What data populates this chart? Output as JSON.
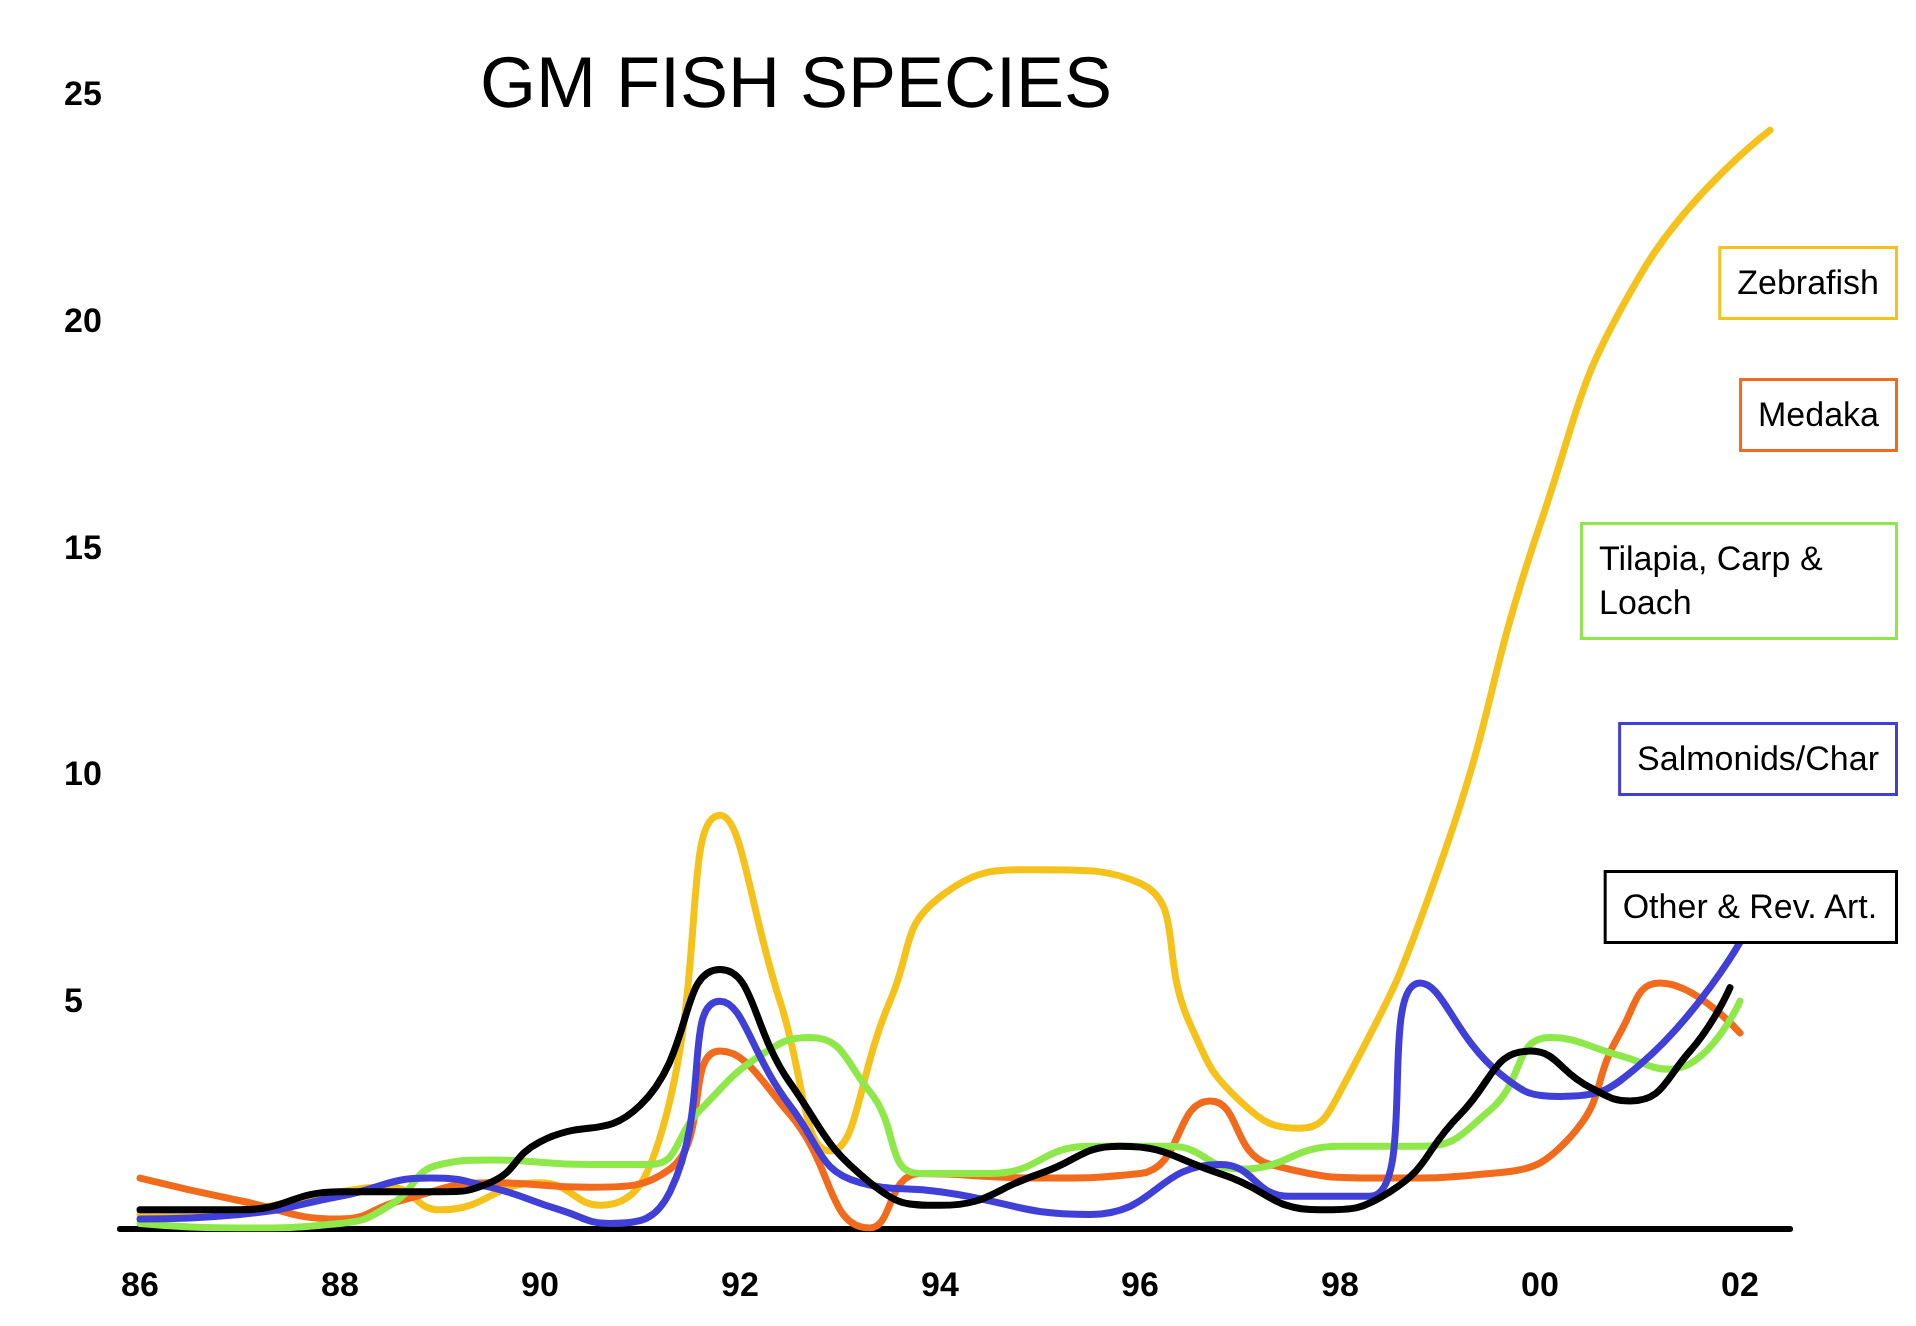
{
  "chart_data": {
    "type": "line",
    "title": "GM FISH SPECIES",
    "xlim": [
      1985.8,
      2002.5
    ],
    "ylim": [
      0,
      25
    ],
    "xticks": [
      {
        "value": 1986,
        "label": "86"
      },
      {
        "value": 1988,
        "label": "88"
      },
      {
        "value": 1990,
        "label": "90"
      },
      {
        "value": 1992,
        "label": "92"
      },
      {
        "value": 1994,
        "label": "94"
      },
      {
        "value": 1996,
        "label": "96"
      },
      {
        "value": 1998,
        "label": "98"
      },
      {
        "value": 2000,
        "label": "00"
      },
      {
        "value": 2002,
        "label": "02"
      }
    ],
    "yticks": [
      5,
      10,
      15,
      20,
      25
    ],
    "grid": false,
    "legend": "right",
    "marker": "none",
    "line_style": "solid",
    "series": [
      {
        "name": "Zebrafish",
        "color": "#f5c21b",
        "x": [
          1986,
          1987,
          1988,
          1988.5,
          1989,
          1990,
          1990.6,
          1991.2,
          1991.8,
          1992.4,
          1992.9,
          1993.5,
          1994,
          1995,
          1996,
          1996.5,
          1997,
          1997.6,
          1998,
          1999,
          2000,
          2001,
          2002.3
        ],
        "values": [
          0.3,
          0.4,
          0.8,
          0.9,
          0.4,
          1.0,
          0.5,
          2.0,
          9.1,
          5.0,
          1.7,
          5.0,
          7.3,
          7.9,
          7.6,
          4.5,
          2.8,
          2.2,
          3.0,
          8.0,
          15.5,
          21.0,
          24.2
        ]
      },
      {
        "name": "Medaka",
        "color": "#f26a1b",
        "x": [
          1986,
          1987,
          1988,
          1988.6,
          1989.5,
          1990.5,
          1991.3,
          1991.8,
          1992.5,
          1993.3,
          1993.8,
          1995,
          1996,
          1996.7,
          1997.3,
          1998.5,
          1999.5,
          2000.3,
          2000.8,
          2001.2,
          2002
        ],
        "values": [
          1.1,
          0.6,
          0.2,
          0.6,
          1.0,
          0.9,
          1.3,
          3.9,
          2.5,
          0,
          1.2,
          1.1,
          1.2,
          2.8,
          1.4,
          1.1,
          1.2,
          2.0,
          4.3,
          5.4,
          4.3
        ]
      },
      {
        "name": "Tilapia, Carp & Loach",
        "color": "#8ee84a",
        "x": [
          1986,
          1987,
          1988,
          1988.5,
          1989,
          1989.5,
          1990.5,
          1991.1,
          1991.6,
          1992.2,
          1992.7,
          1993.3,
          1993.8,
          1994.5,
          1995.5,
          1996.3,
          1997,
          1998,
          1998.8,
          1999.5,
          2000.1,
          2000.8,
          2001.3,
          2002
        ],
        "values": [
          0.1,
          0,
          0.1,
          0.5,
          1.4,
          1.5,
          1.4,
          1.4,
          2.6,
          3.8,
          4.2,
          3.0,
          1.2,
          1.2,
          1.8,
          1.8,
          1.3,
          1.8,
          1.8,
          2.6,
          4.2,
          3.8,
          3.5,
          5.0
        ]
      },
      {
        "name": "Salmonids/Char",
        "color": "#4040d8",
        "x": [
          1986,
          1987,
          1988,
          1988.9,
          1989.5,
          1990.2,
          1990.7,
          1991.3,
          1991.8,
          1992.5,
          1993.2,
          1994,
          1995.5,
          1996.8,
          1997.5,
          1998.3,
          1998.8,
          1999.6,
          2000.2,
          2001,
          2002
        ],
        "values": [
          0.2,
          0.3,
          0.7,
          1.1,
          0.9,
          0.4,
          0.1,
          0.8,
          5.0,
          2.7,
          1.0,
          0.8,
          0.3,
          1.4,
          0.7,
          0.7,
          5.4,
          3.4,
          2.9,
          3.6,
          6.3
        ]
      },
      {
        "name": "Other & Rev. Art.",
        "color": "#000000",
        "x": [
          1986,
          1987,
          1988,
          1989,
          1989.5,
          1990,
          1991,
          1991.8,
          1992.5,
          1993.3,
          1994,
          1995,
          1995.8,
          1996.8,
          1997.8,
          1998.5,
          1999.2,
          1999.9,
          2000.5,
          2000.9,
          2001.5,
          2001.9
        ],
        "values": [
          0.4,
          0.4,
          0.8,
          0.8,
          1.0,
          1.9,
          2.7,
          5.7,
          3.2,
          1.0,
          0.5,
          1.2,
          1.8,
          1.2,
          0.4,
          0.8,
          2.5,
          3.9,
          3.1,
          2.8,
          3.9,
          5.3
        ]
      }
    ]
  }
}
